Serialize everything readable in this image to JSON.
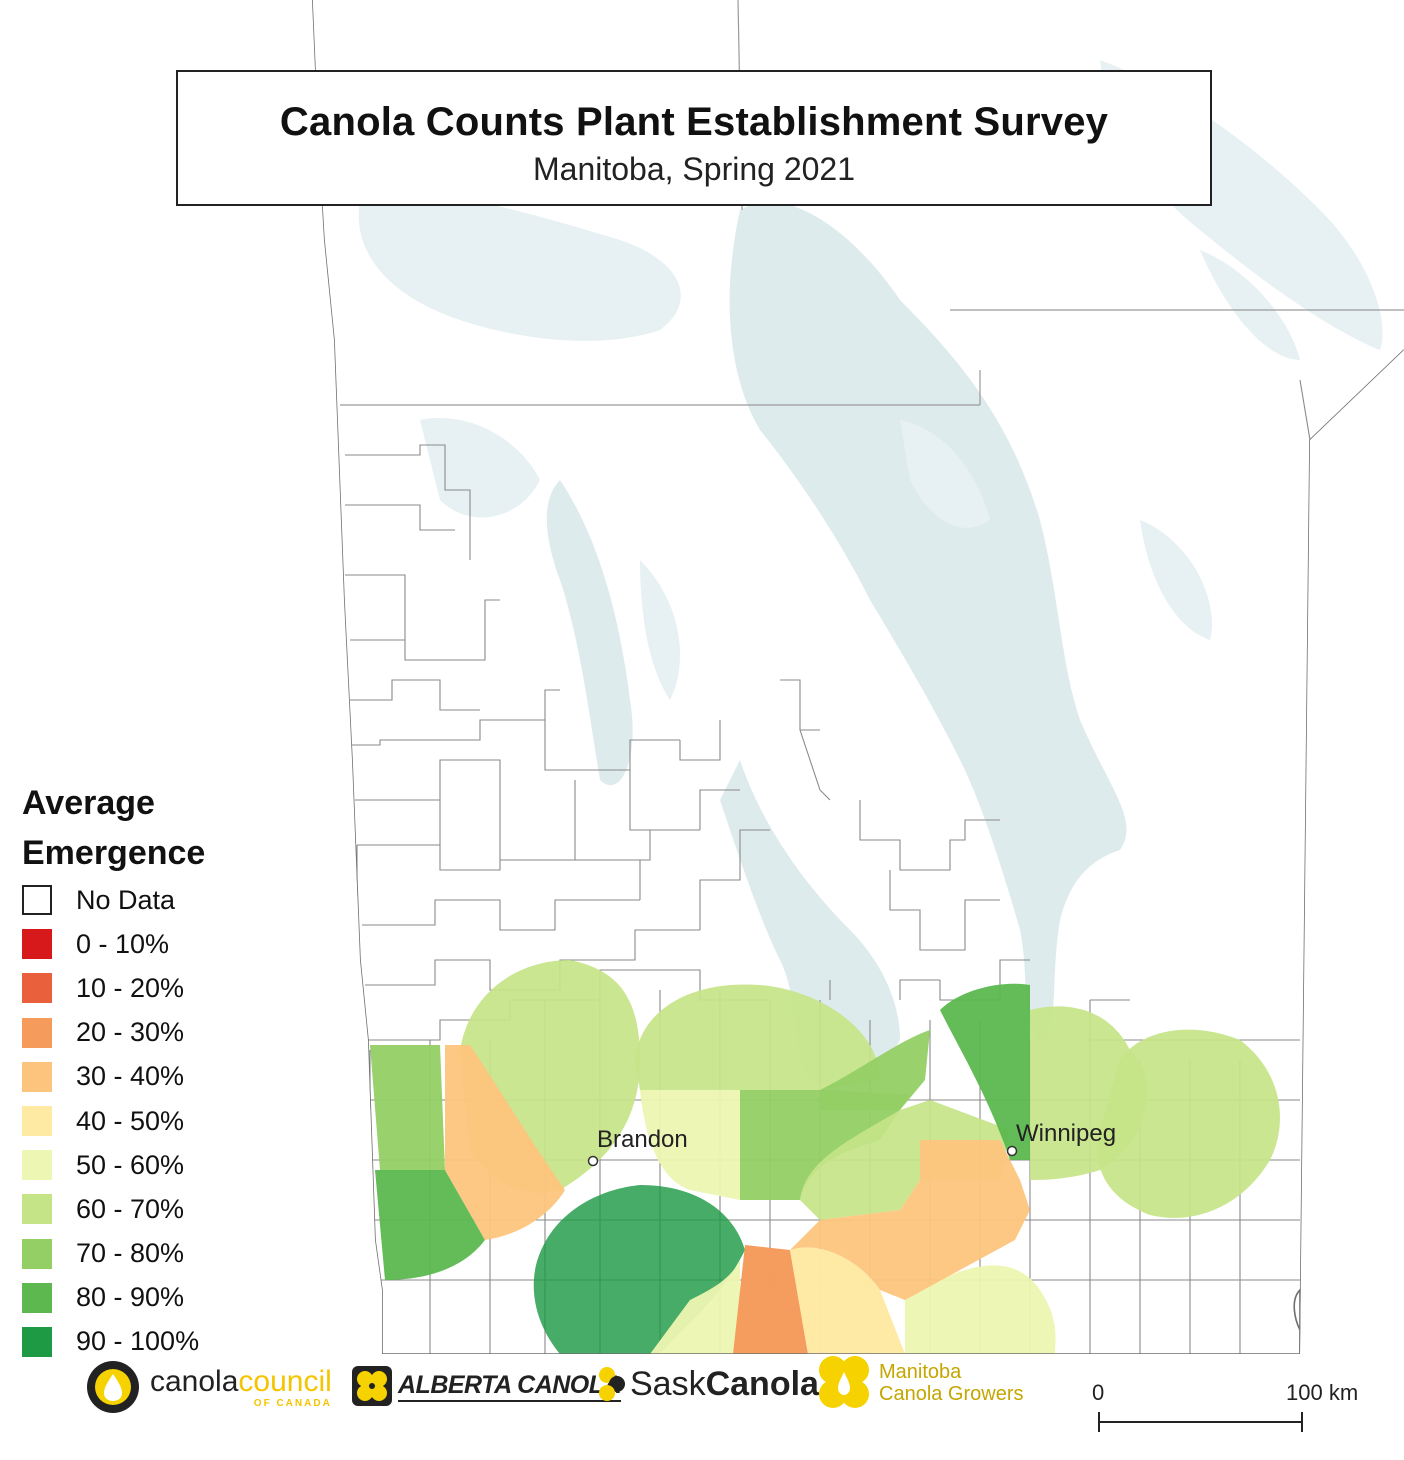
{
  "title": "Canola Counts Plant Establishment Survey",
  "subtitle": "Manitoba, Spring 2021",
  "legend": {
    "title_line1": "Average",
    "title_line2": "Emergence",
    "items": [
      {
        "label": "No Data",
        "color": "#ffffff"
      },
      {
        "label": "0 - 10%",
        "color": "#d7191c"
      },
      {
        "label": "10 - 20%",
        "color": "#e8603c"
      },
      {
        "label": "20 - 30%",
        "color": "#f59b5b"
      },
      {
        "label": "30 - 40%",
        "color": "#fdc47d"
      },
      {
        "label": "40 - 50%",
        "color": "#feeaa3"
      },
      {
        "label": "50 - 60%",
        "color": "#edf6b2"
      },
      {
        "label": "60 - 70%",
        "color": "#c5e488"
      },
      {
        "label": "70 - 80%",
        "color": "#94cf65"
      },
      {
        "label": "80 - 90%",
        "color": "#5cb84f"
      },
      {
        "label": "90 - 100%",
        "color": "#1e9a45"
      }
    ]
  },
  "cities": [
    {
      "name": "Brandon"
    },
    {
      "name": "Winnipeg"
    }
  ],
  "scale_bar": {
    "start_label": "0",
    "end_label": "100 km"
  },
  "logos": {
    "canola_council_main": "canolacouncil",
    "canola_council_part1": "canola",
    "canola_council_part2": "council",
    "canola_council_sub": "OF CANADA",
    "alberta_canola": "ALBERTA CANOLA",
    "sask_part1": "Sask",
    "sask_part2": "Canola",
    "manitoba_line1": "Manitoba",
    "manitoba_line2": "Canola Growers"
  },
  "colors": {
    "water": "#deebed",
    "boundary": "#7a7a7a",
    "land": "#ffffff",
    "logo_yellow": "#f5d200"
  }
}
